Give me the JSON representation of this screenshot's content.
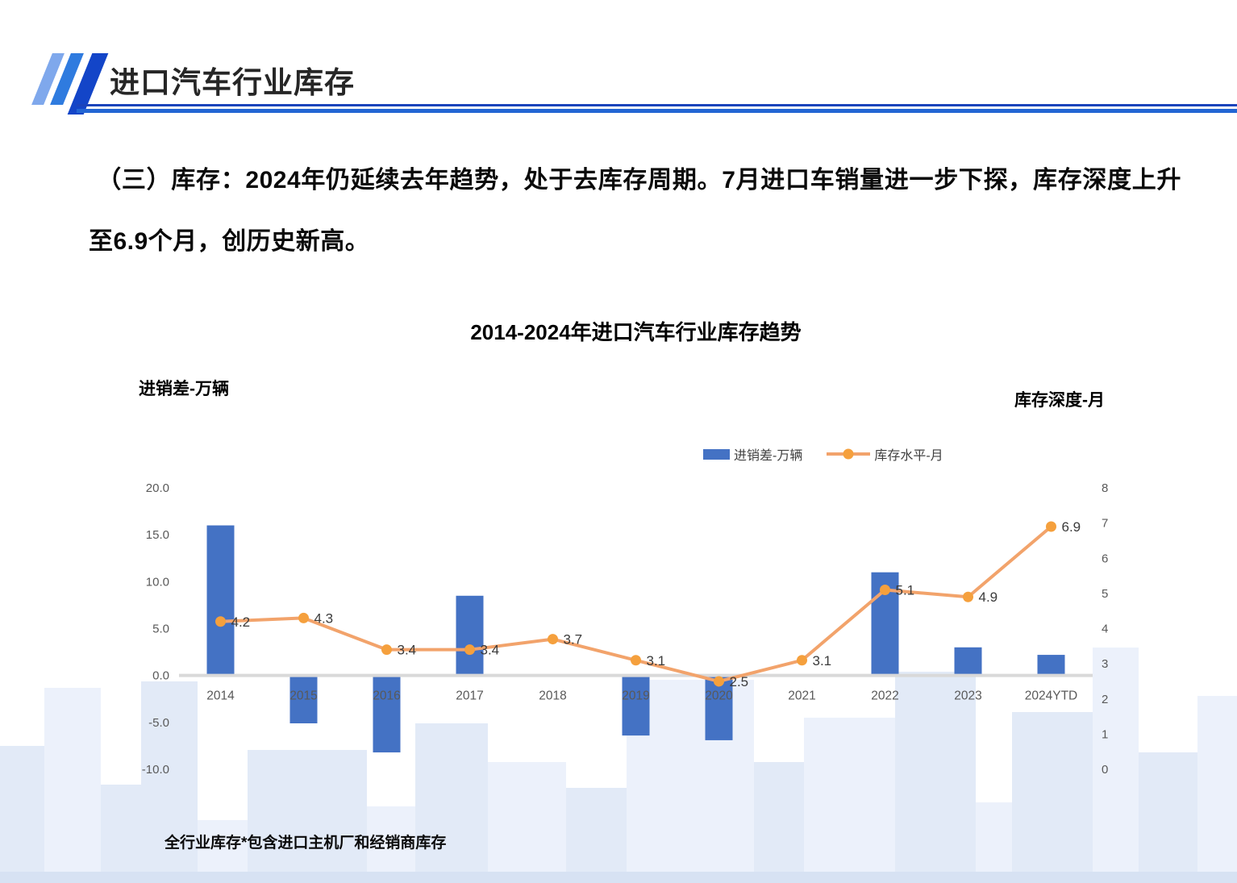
{
  "page": {
    "header": {
      "title": "进口汽车行业库存"
    },
    "body_text": "（三）库存：2024年仍延续去年趋势，处于去库存周期。7月进口车销量进一步下探，库存深度上升至6.9个月，创历史新高。",
    "footnote": "全行业库存*包含进口主机厂和经销商库存"
  },
  "colors": {
    "bar_blue": "#4472C4",
    "line_orange": "#F2A36B",
    "marker_orange": "#F5A03D",
    "axis_text": "#595959",
    "data_label": "#3B3B3B",
    "baseline_gray": "#D9D9D9",
    "header_rule_dark": "#1B44BB",
    "header_rule_light": "#2265D3",
    "skyline_light": "#ECF1FB",
    "skyline_mid": "#E2EAF7",
    "skyline_base": "#D7E2F3"
  },
  "chart_data": {
    "type": "bar",
    "title": "2014-2024年进口汽车行业库存趋势",
    "left_axis_label": "进销差-万辆",
    "right_axis_label": "库存深度-月",
    "categories": [
      "2014",
      "2015",
      "2016",
      "2017",
      "2018",
      "2019",
      "2020",
      "2021",
      "2022",
      "2023",
      "2024YTD"
    ],
    "series": [
      {
        "name": "进销差-万辆",
        "kind": "bar",
        "axis": "left",
        "values": [
          16.0,
          -5.1,
          -8.2,
          8.5,
          0,
          -6.4,
          -6.9,
          0,
          11.0,
          3.0,
          2.2
        ]
      },
      {
        "name": "库存水平-月",
        "kind": "line",
        "axis": "right",
        "values": [
          4.2,
          4.3,
          3.4,
          3.4,
          3.7,
          3.1,
          2.5,
          3.1,
          5.1,
          4.9,
          6.9
        ],
        "labels": [
          "4.2",
          "4.3",
          "3.4",
          "3.4",
          "3.7",
          "3.1",
          "2.5",
          "3.1",
          "5.1",
          "4.9",
          "6.9"
        ]
      }
    ],
    "left_axis": {
      "range": [
        -10,
        20
      ],
      "ticks": [
        "20.0",
        "15.0",
        "10.0",
        "5.0",
        "0.0",
        "-5.0",
        "-10.0"
      ]
    },
    "right_axis": {
      "range": [
        0,
        8
      ],
      "ticks": [
        "8",
        "7",
        "6",
        "5",
        "4",
        "3",
        "2",
        "1",
        "0"
      ]
    },
    "legend": [
      {
        "label": "进销差-万辆",
        "swatch": "bar"
      },
      {
        "label": "库存水平-月",
        "swatch": "line"
      }
    ],
    "gridlines": false,
    "legend_position": "top-center"
  }
}
